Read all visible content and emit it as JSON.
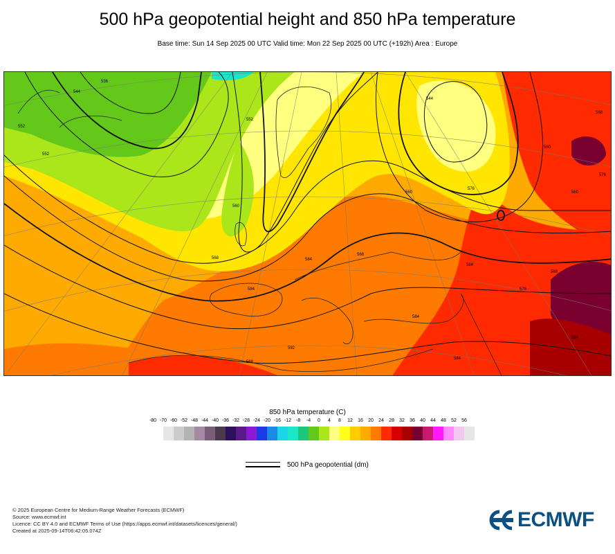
{
  "title": "500 hPa geopotential height and 850 hPa temperature",
  "subtitle": "Base time: Sun 14 Sep 2025 00 UTC Valid time: Mon 22 Sep 2025 00 UTC (+192h) Area : Europe",
  "legend": {
    "title": "850 hPa temperature (C)",
    "ticks": [
      "-80",
      "-70",
      "-60",
      "-52",
      "-48",
      "-44",
      "-40",
      "-36",
      "-32",
      "-28",
      "-24",
      "-20",
      "-16",
      "-12",
      "-8",
      "-4",
      "0",
      "4",
      "8",
      "12",
      "16",
      "20",
      "24",
      "28",
      "32",
      "36",
      "40",
      "44",
      "48",
      "52",
      "56"
    ],
    "colors": [
      "#e6e6e6",
      "#cccccc",
      "#b3b3b3",
      "#a38ca3",
      "#7a5e7a",
      "#4b3a4b",
      "#2d0f5c",
      "#5a1a8c",
      "#8a1ad6",
      "#1a3ae6",
      "#1a8ae6",
      "#1ad6e6",
      "#1ae6c8",
      "#1ac878",
      "#64c81a",
      "#aae61a",
      "#ffff80",
      "#ffff1a",
      "#ffcc00",
      "#ffaa00",
      "#ff7a00",
      "#ff2a00",
      "#d60000",
      "#a80000",
      "#780030",
      "#c81a6e",
      "#ff1aff",
      "#ff8aff",
      "#f0c8f0",
      "#e6e6e6"
    ]
  },
  "geo_legend_label": "500 hPa geopotential (dm)",
  "footer": [
    "© 2025 European Centre for Medium-Range Weather Forecasts (ECMWF)",
    "Source: www.ecmwf.int",
    "Licence: CC BY 4.0 and ECMWF Terms of Use (https://apps.ecmwf.int/datasets/licences/general/)",
    "Created at 2025-09-14T06:42:05.074Z"
  ],
  "logo_text": "ECMWF",
  "contour_labels": [
    "568",
    "568",
    "568",
    "560",
    "560",
    "552",
    "552",
    "544",
    "576",
    "584",
    "584",
    "576",
    "568",
    "560",
    "544",
    "536",
    "552",
    "560",
    "568",
    "576",
    "584",
    "592",
    "584",
    "584",
    "584"
  ]
}
